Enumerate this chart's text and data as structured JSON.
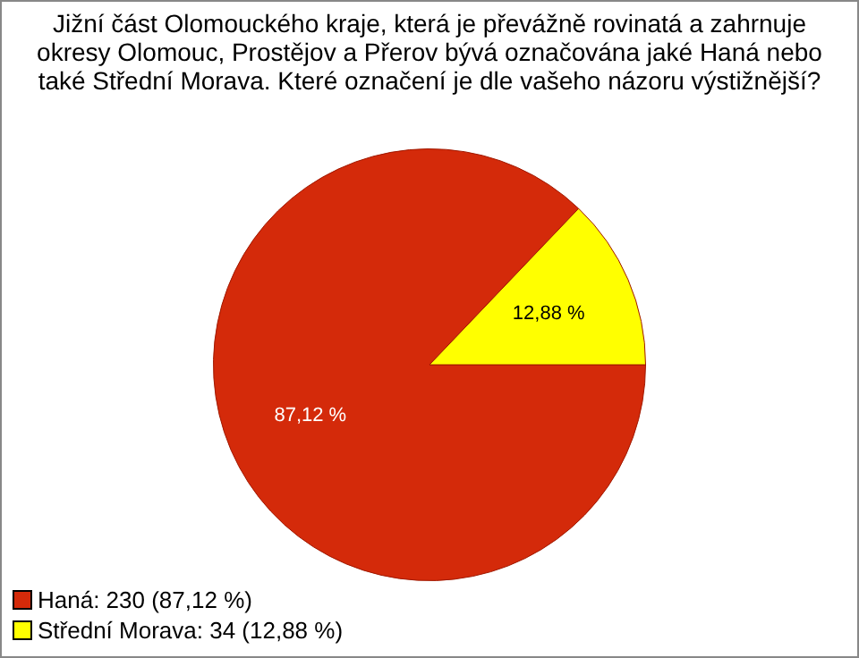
{
  "chart_data": {
    "type": "pie",
    "title": "Jižní část Olomouckého kraje, která je převážně rovinatá a zahrnuje okresy Olomouc, Prostějov a Přerov bývá označována jaké Haná nebo také Střední Morava. Které označení je dle vašeho názoru výstižnější?",
    "categories": [
      "Haná: 230 (87,12 %)",
      "Střední Morava: 34 (12,88 %)"
    ],
    "values": [
      87.12,
      12.88
    ],
    "value_labels": [
      "87,12 %",
      "12,88 %"
    ],
    "colors": [
      "#d42a0a",
      "#ffff00"
    ],
    "legend": "bottom left"
  }
}
